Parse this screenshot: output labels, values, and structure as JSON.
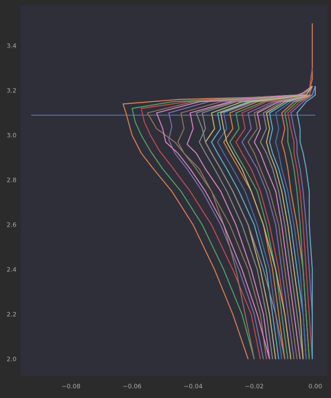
{
  "chart_data": {
    "type": "line",
    "title": "",
    "xlabel": "",
    "ylabel": "",
    "xlim": [
      -0.0965,
      0.004
    ],
    "ylim": [
      1.925,
      3.58
    ],
    "grid": false,
    "legend": "none",
    "x_ticks": [
      {
        "value": -0.08,
        "label": "−0.08"
      },
      {
        "value": -0.06,
        "label": "−0.06"
      },
      {
        "value": -0.04,
        "label": "−0.04"
      },
      {
        "value": -0.02,
        "label": "−0.02"
      },
      {
        "value": 0.0,
        "label": "0.00"
      }
    ],
    "y_ticks": [
      {
        "value": 2.0,
        "label": "2.0"
      },
      {
        "value": 2.2,
        "label": "2.2"
      },
      {
        "value": 2.4,
        "label": "2.4"
      },
      {
        "value": 2.6,
        "label": "2.6"
      },
      {
        "value": 2.8,
        "label": "2.8"
      },
      {
        "value": 3.0,
        "label": "3.0"
      },
      {
        "value": 3.2,
        "label": "3.2"
      },
      {
        "value": 3.4,
        "label": "3.4"
      }
    ],
    "colors": {
      "background": "#2b2b2b",
      "plot_area": "#2f2f3a",
      "tick_text": "#a9a9a9",
      "palette": [
        "#4c72b0",
        "#dd8452",
        "#55a868",
        "#c44e52",
        "#8172b3",
        "#937860",
        "#da8bc3",
        "#8c8c8c",
        "#ccb974",
        "#64b5cd"
      ]
    },
    "series": [
      {
        "x": [
          -0.093,
          -0.042,
          -0.008,
          0.0
        ],
        "y": [
          3.09,
          3.09,
          3.09,
          3.09
        ]
      },
      {
        "x": [
          -0.022,
          -0.027,
          -0.033,
          -0.04,
          -0.047,
          -0.053,
          -0.057,
          -0.06,
          -0.061,
          -0.062,
          -0.063,
          -0.045,
          -0.02,
          -0.006,
          -0.002,
          -0.001,
          -0.001,
          -0.001
        ],
        "y": [
          2.0,
          2.2,
          2.4,
          2.6,
          2.75,
          2.85,
          2.92,
          3.0,
          3.05,
          3.1,
          3.14,
          3.16,
          3.17,
          3.18,
          3.2,
          3.25,
          3.35,
          3.5
        ]
      },
      {
        "x": [
          -0.02,
          -0.024,
          -0.03,
          -0.037,
          -0.044,
          -0.05,
          -0.054,
          -0.057,
          -0.059,
          -0.06,
          -0.047,
          -0.02,
          -0.006,
          -0.002,
          -0.001
        ],
        "y": [
          2.0,
          2.2,
          2.4,
          2.6,
          2.75,
          2.85,
          2.93,
          3.0,
          3.06,
          3.12,
          3.15,
          3.17,
          3.18,
          3.2,
          3.3
        ]
      },
      {
        "x": [
          -0.018,
          -0.021,
          -0.027,
          -0.034,
          -0.041,
          -0.047,
          -0.051,
          -0.054,
          -0.056,
          -0.057,
          -0.042,
          -0.018,
          -0.005,
          -0.002,
          -0.001
        ],
        "y": [
          2.0,
          2.2,
          2.4,
          2.6,
          2.75,
          2.86,
          2.93,
          3.0,
          3.06,
          3.12,
          3.15,
          3.17,
          3.18,
          3.2,
          3.3
        ]
      },
      {
        "x": [
          -0.017,
          -0.02,
          -0.025,
          -0.031,
          -0.037,
          -0.042,
          -0.046,
          -0.048,
          -0.047,
          -0.048,
          -0.035,
          -0.015,
          -0.004,
          -0.001
        ],
        "y": [
          2.0,
          2.2,
          2.4,
          2.6,
          2.75,
          2.85,
          2.92,
          2.98,
          3.04,
          3.1,
          3.15,
          3.17,
          3.18,
          3.22
        ]
      },
      {
        "x": [
          -0.016,
          -0.018,
          -0.022,
          -0.028,
          -0.034,
          -0.039,
          -0.043,
          -0.045,
          -0.043,
          -0.044,
          -0.031,
          -0.013,
          -0.004,
          -0.001
        ],
        "y": [
          2.0,
          2.2,
          2.4,
          2.6,
          2.75,
          2.85,
          2.92,
          2.97,
          3.03,
          3.1,
          3.15,
          3.17,
          3.18,
          3.22
        ]
      },
      {
        "x": [
          -0.015,
          -0.017,
          -0.021,
          -0.026,
          -0.031,
          -0.036,
          -0.039,
          -0.042,
          -0.04,
          -0.041,
          -0.028,
          -0.012,
          -0.003,
          -0.001
        ],
        "y": [
          2.0,
          2.2,
          2.4,
          2.6,
          2.75,
          2.85,
          2.92,
          2.96,
          3.03,
          3.1,
          3.15,
          3.17,
          3.18,
          3.22
        ]
      },
      {
        "x": [
          -0.014,
          -0.016,
          -0.019,
          -0.024,
          -0.029,
          -0.033,
          -0.036,
          -0.038,
          -0.036,
          -0.037,
          -0.026,
          -0.011,
          -0.003,
          -0.001
        ],
        "y": [
          2.0,
          2.2,
          2.4,
          2.6,
          2.75,
          2.85,
          2.92,
          2.97,
          3.03,
          3.1,
          3.15,
          3.17,
          3.18,
          3.22
        ]
      },
      {
        "x": [
          -0.013,
          -0.015,
          -0.018,
          -0.022,
          -0.027,
          -0.031,
          -0.034,
          -0.036,
          -0.033,
          -0.034,
          -0.024,
          -0.01,
          -0.003,
          -0.001
        ],
        "y": [
          2.0,
          2.2,
          2.4,
          2.6,
          2.75,
          2.85,
          2.92,
          2.97,
          3.03,
          3.1,
          3.15,
          3.17,
          3.18,
          3.22
        ]
      },
      {
        "x": [
          -0.012,
          -0.014,
          -0.016,
          -0.02,
          -0.025,
          -0.029,
          -0.032,
          -0.034,
          -0.031,
          -0.032,
          -0.022,
          -0.009,
          -0.003,
          -0.001
        ],
        "y": [
          2.0,
          2.2,
          2.4,
          2.6,
          2.75,
          2.85,
          2.92,
          2.97,
          3.03,
          3.1,
          3.15,
          3.17,
          3.18,
          3.22
        ]
      },
      {
        "x": [
          -0.011,
          -0.013,
          -0.015,
          -0.019,
          -0.023,
          -0.027,
          -0.03,
          -0.032,
          -0.029,
          -0.03,
          -0.02,
          -0.008,
          -0.002,
          -0.001
        ],
        "y": [
          2.0,
          2.2,
          2.4,
          2.6,
          2.75,
          2.85,
          2.92,
          2.97,
          3.03,
          3.1,
          3.15,
          3.17,
          3.18,
          3.22
        ]
      },
      {
        "x": [
          -0.01,
          -0.012,
          -0.014,
          -0.017,
          -0.021,
          -0.025,
          -0.028,
          -0.03,
          -0.027,
          -0.028,
          -0.019,
          -0.008,
          -0.002,
          -0.001
        ],
        "y": [
          2.0,
          2.2,
          2.4,
          2.6,
          2.75,
          2.85,
          2.92,
          2.97,
          3.03,
          3.1,
          3.15,
          3.17,
          3.18,
          3.22
        ]
      },
      {
        "x": [
          -0.009,
          -0.011,
          -0.013,
          -0.016,
          -0.019,
          -0.023,
          -0.026,
          -0.028,
          -0.025,
          -0.026,
          -0.017,
          -0.007,
          -0.002,
          -0.001
        ],
        "y": [
          2.0,
          2.2,
          2.4,
          2.6,
          2.75,
          2.85,
          2.92,
          2.97,
          3.03,
          3.1,
          3.15,
          3.17,
          3.18,
          3.22
        ]
      },
      {
        "x": [
          -0.008,
          -0.01,
          -0.012,
          -0.015,
          -0.018,
          -0.021,
          -0.024,
          -0.026,
          -0.023,
          -0.024,
          -0.016,
          -0.006,
          -0.002,
          -0.001
        ],
        "y": [
          2.0,
          2.2,
          2.4,
          2.6,
          2.75,
          2.85,
          2.92,
          2.97,
          3.03,
          3.1,
          3.15,
          3.17,
          3.18,
          3.22
        ]
      },
      {
        "x": [
          -0.007,
          -0.009,
          -0.011,
          -0.013,
          -0.016,
          -0.019,
          -0.022,
          -0.024,
          -0.021,
          -0.022,
          -0.014,
          -0.006,
          -0.002,
          -0.001
        ],
        "y": [
          2.0,
          2.2,
          2.4,
          2.6,
          2.75,
          2.85,
          2.92,
          2.97,
          3.03,
          3.1,
          3.15,
          3.17,
          3.18,
          3.22
        ]
      },
      {
        "x": [
          -0.006,
          -0.008,
          -0.01,
          -0.012,
          -0.015,
          -0.018,
          -0.02,
          -0.022,
          -0.019,
          -0.02,
          -0.013,
          -0.005,
          -0.002,
          -0.001
        ],
        "y": [
          2.0,
          2.2,
          2.4,
          2.6,
          2.75,
          2.85,
          2.92,
          2.97,
          3.03,
          3.1,
          3.15,
          3.17,
          3.18,
          3.22
        ]
      },
      {
        "x": [
          -0.005,
          -0.007,
          -0.009,
          -0.011,
          -0.013,
          -0.016,
          -0.018,
          -0.02,
          -0.018,
          -0.019,
          -0.012,
          -0.005,
          -0.001,
          0.0
        ],
        "y": [
          2.0,
          2.2,
          2.4,
          2.6,
          2.75,
          2.85,
          2.92,
          2.97,
          3.03,
          3.1,
          3.15,
          3.17,
          3.18,
          3.22
        ]
      },
      {
        "x": [
          -0.004,
          -0.006,
          -0.008,
          -0.01,
          -0.012,
          -0.014,
          -0.016,
          -0.018,
          -0.016,
          -0.017,
          -0.011,
          -0.004,
          -0.001,
          0.0
        ],
        "y": [
          2.0,
          2.2,
          2.4,
          2.6,
          2.75,
          2.85,
          2.92,
          2.97,
          3.03,
          3.1,
          3.15,
          3.17,
          3.18,
          3.22
        ]
      },
      {
        "x": [
          -0.004,
          -0.005,
          -0.007,
          -0.009,
          -0.011,
          -0.013,
          -0.015,
          -0.016,
          -0.015,
          -0.016,
          -0.01,
          -0.004,
          -0.001,
          0.0
        ],
        "y": [
          2.0,
          2.2,
          2.4,
          2.6,
          2.75,
          2.85,
          2.92,
          2.97,
          3.03,
          3.1,
          3.15,
          3.17,
          3.18,
          3.22
        ]
      },
      {
        "x": [
          -0.003,
          -0.004,
          -0.006,
          -0.008,
          -0.01,
          -0.012,
          -0.014,
          -0.015,
          -0.014,
          -0.015,
          -0.009,
          -0.003,
          -0.001,
          0.0
        ],
        "y": [
          2.0,
          2.2,
          2.4,
          2.6,
          2.75,
          2.85,
          2.92,
          2.97,
          3.03,
          3.1,
          3.15,
          3.17,
          3.18,
          3.22
        ]
      },
      {
        "x": [
          -0.003,
          -0.004,
          -0.005,
          -0.007,
          -0.009,
          -0.011,
          -0.012,
          -0.013,
          -0.012,
          -0.013,
          -0.008,
          -0.003,
          -0.001,
          0.0
        ],
        "y": [
          2.0,
          2.2,
          2.4,
          2.6,
          2.75,
          2.85,
          2.92,
          2.97,
          3.03,
          3.1,
          3.15,
          3.17,
          3.18,
          3.22
        ]
      },
      {
        "x": [
          -0.002,
          -0.003,
          -0.004,
          -0.006,
          -0.008,
          -0.009,
          -0.01,
          -0.011,
          -0.01,
          -0.011,
          -0.007,
          -0.003,
          -0.001,
          0.0
        ],
        "y": [
          2.0,
          2.2,
          2.4,
          2.6,
          2.75,
          2.85,
          2.92,
          2.97,
          3.03,
          3.1,
          3.15,
          3.17,
          3.18,
          3.22
        ]
      },
      {
        "x": [
          -0.002,
          -0.003,
          -0.004,
          -0.005,
          -0.006,
          -0.007,
          -0.008,
          -0.009,
          -0.009,
          -0.01,
          -0.006,
          -0.002,
          -0.001,
          0.0
        ],
        "y": [
          2.0,
          2.2,
          2.4,
          2.6,
          2.75,
          2.85,
          2.92,
          2.97,
          3.03,
          3.1,
          3.15,
          3.17,
          3.18,
          3.22
        ]
      },
      {
        "x": [
          -0.001,
          -0.002,
          -0.003,
          -0.004,
          -0.005,
          -0.006,
          -0.007,
          -0.007,
          -0.008,
          -0.009,
          -0.005,
          -0.002,
          -0.001,
          0.0
        ],
        "y": [
          2.0,
          2.2,
          2.4,
          2.6,
          2.75,
          2.85,
          2.92,
          2.97,
          3.03,
          3.1,
          3.15,
          3.17,
          3.18,
          3.22
        ]
      },
      {
        "x": [
          -0.001,
          -0.001,
          -0.002,
          -0.003,
          -0.004,
          -0.005,
          -0.006,
          -0.006,
          -0.007,
          -0.008,
          -0.004,
          -0.002,
          -0.001,
          0.0
        ],
        "y": [
          2.0,
          2.2,
          2.4,
          2.6,
          2.75,
          2.85,
          2.92,
          2.97,
          3.03,
          3.1,
          3.15,
          3.17,
          3.18,
          3.22
        ]
      },
      {
        "x": [
          -0.02,
          -0.023,
          -0.026,
          -0.03,
          -0.034,
          -0.038,
          -0.043,
          -0.046,
          -0.052,
          -0.055,
          -0.04,
          -0.018,
          -0.005,
          -0.001
        ],
        "y": [
          2.0,
          2.2,
          2.4,
          2.6,
          2.75,
          2.85,
          2.92,
          2.97,
          3.03,
          3.1,
          3.15,
          3.17,
          3.18,
          3.22
        ]
      },
      {
        "x": [
          -0.015,
          -0.019,
          -0.024,
          -0.03,
          -0.036,
          -0.041,
          -0.045,
          -0.049,
          -0.05,
          -0.052,
          -0.038,
          -0.016,
          -0.005,
          -0.001
        ],
        "y": [
          2.0,
          2.2,
          2.4,
          2.6,
          2.75,
          2.85,
          2.92,
          2.97,
          3.03,
          3.1,
          3.15,
          3.17,
          3.18,
          3.22
        ]
      },
      {
        "x": [
          -0.01,
          -0.013,
          -0.017,
          -0.022,
          -0.027,
          -0.031,
          -0.034,
          -0.036,
          -0.037,
          -0.039,
          -0.027,
          -0.011,
          -0.003,
          -0.001
        ],
        "y": [
          2.0,
          2.2,
          2.4,
          2.6,
          2.75,
          2.85,
          2.92,
          2.97,
          3.03,
          3.1,
          3.15,
          3.17,
          3.18,
          3.22
        ]
      },
      {
        "x": [
          -0.008,
          -0.01,
          -0.013,
          -0.017,
          -0.021,
          -0.024,
          -0.027,
          -0.029,
          -0.03,
          -0.031,
          -0.021,
          -0.009,
          -0.003,
          -0.001
        ],
        "y": [
          2.0,
          2.2,
          2.4,
          2.6,
          2.75,
          2.85,
          2.92,
          2.97,
          3.03,
          3.1,
          3.15,
          3.17,
          3.18,
          3.22
        ]
      },
      {
        "x": [
          -0.001,
          -0.001,
          -0.001,
          -0.002,
          -0.002,
          -0.003,
          -0.004,
          -0.005,
          -0.005,
          -0.006,
          -0.003,
          -0.001,
          0.0,
          0.0
        ],
        "y": [
          2.0,
          2.2,
          2.4,
          2.6,
          2.75,
          2.85,
          2.92,
          2.97,
          3.03,
          3.1,
          3.15,
          3.17,
          3.18,
          3.22
        ]
      }
    ]
  }
}
